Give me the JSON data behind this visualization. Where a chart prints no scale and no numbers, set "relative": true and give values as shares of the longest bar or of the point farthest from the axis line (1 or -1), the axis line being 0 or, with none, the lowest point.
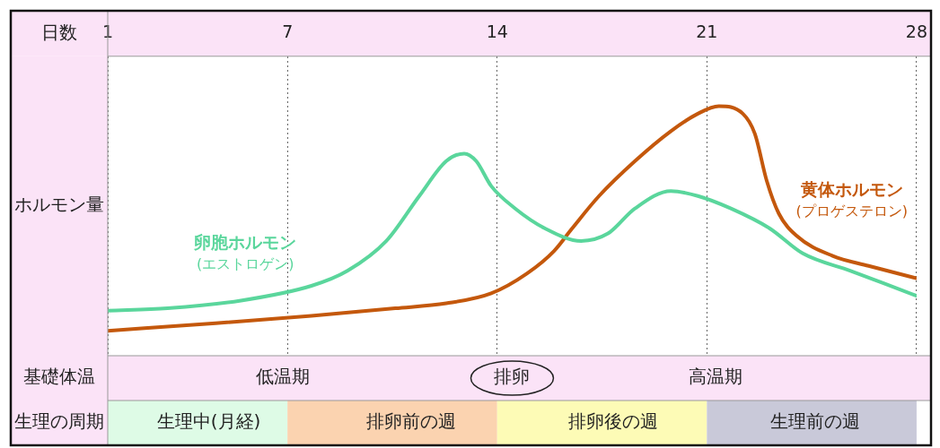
{
  "chart_data": {
    "type": "line",
    "relative": true,
    "xlabel": "日数",
    "ylabel": "ホルモン量",
    "xlim": [
      1,
      28
    ],
    "xticks": [
      1,
      7,
      14,
      21,
      28
    ],
    "grid": "x",
    "series": [
      {
        "name": "卵胞ホルモン\n(エストロゲン)",
        "color": "#5ad69c",
        "x": [
          1,
          3.0,
          5.4,
          7.8,
          9.0,
          10.3,
          11.4,
          12.3,
          12.9,
          13.3,
          13.8,
          14.6,
          15.6,
          16.8,
          17.7,
          18.6,
          19.8,
          20.7,
          21.8,
          23.1,
          24.2,
          25.8,
          26.9,
          28
        ],
        "values": [
          0.18,
          0.19,
          0.22,
          0.28,
          0.34,
          0.46,
          0.64,
          0.78,
          0.81,
          0.78,
          0.68,
          0.59,
          0.51,
          0.46,
          0.49,
          0.59,
          0.66,
          0.64,
          0.59,
          0.51,
          0.41,
          0.34,
          0.29,
          0.24
        ]
      },
      {
        "name": "黄体ホルモン\n(プロゲステロン)",
        "color": "#c4580c",
        "x": [
          1,
          4.6,
          7.8,
          10.6,
          12.3,
          13.8,
          15.0,
          15.9,
          16.5,
          17.4,
          18.6,
          19.8,
          20.7,
          21.4,
          22.2,
          22.6,
          23.0,
          23.4,
          24.0,
          25.2,
          26.4,
          28
        ],
        "values": [
          0.1,
          0.13,
          0.16,
          0.19,
          0.21,
          0.25,
          0.33,
          0.42,
          0.51,
          0.64,
          0.78,
          0.9,
          0.97,
          1,
          0.97,
          0.89,
          0.7,
          0.57,
          0.48,
          0.4,
          0.36,
          0.31
        ]
      }
    ],
    "annotations": [
      "基礎体温",
      "低温期",
      "排卵",
      "高温期",
      "生理の周期",
      "生理中(月経)",
      "排卵前の週",
      "排卵後の週",
      "生理前の週"
    ]
  }
}
